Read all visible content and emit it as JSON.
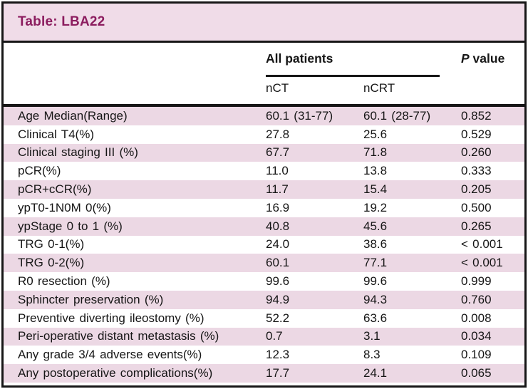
{
  "title": "Table: LBA22",
  "header": {
    "group_label": "All patients",
    "p_value_italic": "P",
    "p_value_rest": " value",
    "subcolumns": [
      "nCT",
      "nCRT"
    ]
  },
  "table": {
    "rows": [
      {
        "label": "Age Median(Range)",
        "nct": "60.1 (31-77)",
        "ncrt": "60.1 (28-77)",
        "p": "0.852"
      },
      {
        "label": "Clinical T4(%)",
        "nct": "27.8",
        "ncrt": "25.6",
        "p": "0.529"
      },
      {
        "label": "Clinical staging III (%)",
        "nct": "67.7",
        "ncrt": "71.8",
        "p": "0.260"
      },
      {
        "label": "pCR(%)",
        "nct": "11.0",
        "ncrt": "13.8",
        "p": "0.333"
      },
      {
        "label": "pCR+cCR(%)",
        "nct": "11.7",
        "ncrt": "15.4",
        "p": "0.205"
      },
      {
        "label": "ypT0-1N0M 0(%)",
        "nct": "16.9",
        "ncrt": "19.2",
        "p": "0.500"
      },
      {
        "label": "ypStage 0 to 1 (%)",
        "nct": "40.8",
        "ncrt": "45.6",
        "p": "0.265"
      },
      {
        "label": "TRG 0-1(%)",
        "nct": "24.0",
        "ncrt": "38.6",
        "p": "< 0.001"
      },
      {
        "label": "TRG 0-2(%)",
        "nct": "60.1",
        "ncrt": "77.1",
        "p": "< 0.001"
      },
      {
        "label": "R0 resection (%)",
        "nct": "99.6",
        "ncrt": "99.6",
        "p": "0.999"
      },
      {
        "label": "Sphincter preservation (%)",
        "nct": "94.9",
        "ncrt": "94.3",
        "p": "0.760"
      },
      {
        "label": "Preventive diverting ileostomy (%)",
        "nct": "52.2",
        "ncrt": "63.6",
        "p": "0.008"
      },
      {
        "label": "Peri-operative distant metastasis (%)",
        "nct": "0.7",
        "ncrt": "3.1",
        "p": "0.034"
      },
      {
        "label": "Any grade 3/4 adverse events(%)",
        "nct": "12.3",
        "ncrt": "8.3",
        "p": "0.109"
      },
      {
        "label": "Any postoperative complications(%)",
        "nct": "17.7",
        "ncrt": "24.1",
        "p": "0.065"
      }
    ]
  },
  "colors": {
    "row_pink": "#ecd8e4",
    "title_bar_bg": "#f0dce8",
    "title_text": "#8c1d5f",
    "border": "#161616"
  }
}
